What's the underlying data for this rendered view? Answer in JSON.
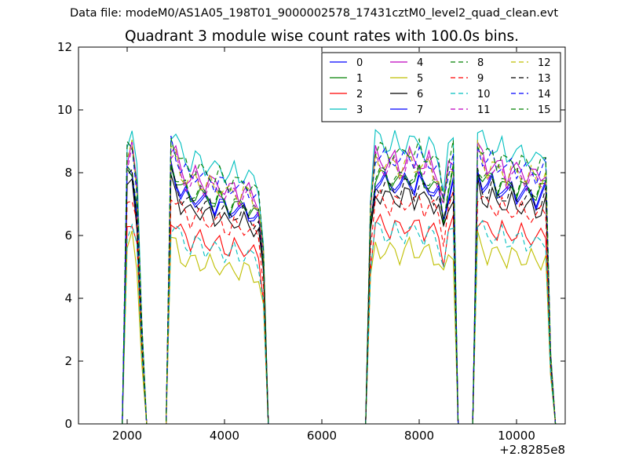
{
  "figure": {
    "suptitle": "Data file: modeM0/AS1A05_198T01_9000002578_17431cztM0_level2_quad_clean.evt"
  },
  "chart_data": {
    "type": "line",
    "title": "Quadrant 3 module wise count rates with 100.0s bins.",
    "xlabel": "",
    "ylabel": "",
    "x_offset_text": "+2.8285e8",
    "xlim": [
      1000,
      11000
    ],
    "ylim": [
      0,
      12
    ],
    "x_ticks": [
      2000,
      4000,
      6000,
      8000,
      10000
    ],
    "x_tick_labels": [
      "2000",
      "4000",
      "6000",
      "8000",
      "10000"
    ],
    "y_ticks": [
      0,
      2,
      4,
      6,
      8,
      10,
      12
    ],
    "y_tick_labels": [
      "0",
      "2",
      "4",
      "6",
      "8",
      "10",
      "12"
    ],
    "legend_position": "top-right",
    "segments": [
      {
        "start": 2000,
        "n": 4,
        "shape": [
          0.97,
          1.0,
          0.85,
          0.35
        ]
      },
      {
        "start": 2900,
        "n": 20,
        "shape": [
          1.0,
          0.97,
          0.92,
          0.9,
          0.88,
          0.9,
          0.89,
          0.87,
          0.88,
          0.86,
          0.87,
          0.85,
          0.84,
          0.86,
          0.83,
          0.85,
          0.84,
          0.82,
          0.8,
          0.62
        ]
      },
      {
        "start": 7000,
        "n": 18,
        "shape": [
          0.78,
          0.97,
          0.96,
          0.95,
          0.94,
          0.96,
          0.93,
          0.95,
          0.97,
          0.94,
          0.96,
          0.93,
          0.95,
          0.92,
          0.9,
          0.8,
          0.92,
          0.96
        ]
      },
      {
        "start": 9200,
        "n": 16,
        "shape": [
          1.0,
          0.96,
          0.93,
          0.95,
          0.92,
          0.94,
          0.9,
          0.93,
          0.91,
          0.92,
          0.9,
          0.91,
          0.89,
          0.9,
          0.92,
          0.25
        ]
      }
    ],
    "series": [
      {
        "name": "0",
        "color": "#0000ff",
        "dash": "solid",
        "level": 8.0
      },
      {
        "name": "1",
        "color": "#008000",
        "dash": "solid",
        "level": 8.2
      },
      {
        "name": "2",
        "color": "#ff0000",
        "dash": "solid",
        "level": 6.6
      },
      {
        "name": "3",
        "color": "#00bfbf",
        "dash": "solid",
        "level": 9.4
      },
      {
        "name": "4",
        "color": "#bf00bf",
        "dash": "solid",
        "level": 8.8
      },
      {
        "name": "5",
        "color": "#bfbf00",
        "dash": "solid",
        "level": 5.8
      },
      {
        "name": "6",
        "color": "#000000",
        "dash": "solid",
        "level": 7.6
      },
      {
        "name": "7",
        "color": "#0000ff",
        "dash": "solid",
        "level": 8.1
      },
      {
        "name": "8",
        "color": "#008000",
        "dash": "dashed",
        "level": 8.3
      },
      {
        "name": "9",
        "color": "#ff0000",
        "dash": "dashed",
        "level": 7.4
      },
      {
        "name": "10",
        "color": "#00bfbf",
        "dash": "dashed",
        "level": 6.4
      },
      {
        "name": "11",
        "color": "#bf00bf",
        "dash": "dashed",
        "level": 8.6
      },
      {
        "name": "12",
        "color": "#bfbf00",
        "dash": "dashed",
        "level": 8.7
      },
      {
        "name": "13",
        "color": "#000000",
        "dash": "dashed",
        "level": 7.9
      },
      {
        "name": "14",
        "color": "#0000ff",
        "dash": "dashed",
        "level": 8.9
      },
      {
        "name": "15",
        "color": "#008000",
        "dash": "dashed",
        "level": 9.1
      }
    ]
  }
}
